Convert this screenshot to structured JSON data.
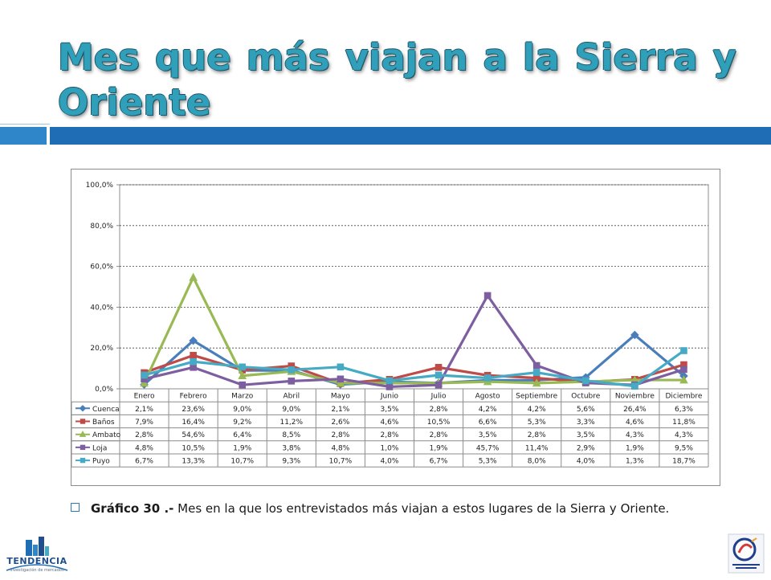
{
  "page": {
    "title": "Mes que más viajan a la Sierra y Oriente",
    "caption_label": "Gráfico 30 .-",
    "caption_text": " Mes en la que los entrevistados más viajan a estos lugares de la Sierra y Oriente.",
    "logo_left_text": "TENDENCIA",
    "logo_left_subtext": "investigación de mercados",
    "colors": {
      "title": "#2f9fba",
      "band_dark": "#1f6db4",
      "band_light": "#2f86c8"
    }
  },
  "chart_data": {
    "type": "line",
    "categories": [
      "Enero",
      "Febrero",
      "Marzo",
      "Abril",
      "Mayo",
      "Junio",
      "Julio",
      "Agosto",
      "Septiembre",
      "Octubre",
      "Noviembre",
      "Diciembre"
    ],
    "ylim": [
      0,
      100
    ],
    "yticks": [
      0,
      20,
      40,
      60,
      80,
      100
    ],
    "ytick_labels": [
      "0,0%",
      "20,0%",
      "40,0%",
      "60,0%",
      "80,0%",
      "100,0%"
    ],
    "grid": true,
    "legend": "data-table",
    "series": [
      {
        "name": "Cuenca",
        "color": "#4a7ebb",
        "marker": "diamond",
        "values": [
          2.1,
          23.6,
          9.0,
          9.0,
          2.1,
          3.5,
          2.8,
          4.2,
          4.2,
          5.6,
          26.4,
          6.3
        ],
        "labels": [
          "2,1%",
          "23,6%",
          "9,0%",
          "9,0%",
          "2,1%",
          "3,5%",
          "2,8%",
          "4,2%",
          "4,2%",
          "5,6%",
          "26,4%",
          "6,3%"
        ]
      },
      {
        "name": "Baños",
        "color": "#be4b48",
        "marker": "square",
        "values": [
          7.9,
          16.4,
          9.2,
          11.2,
          2.6,
          4.6,
          10.5,
          6.6,
          5.3,
          3.3,
          4.6,
          11.8
        ],
        "labels": [
          "7,9%",
          "16,4%",
          "9,2%",
          "11,2%",
          "2,6%",
          "4,6%",
          "10,5%",
          "6,6%",
          "5,3%",
          "3,3%",
          "4,6%",
          "11,8%"
        ]
      },
      {
        "name": "Ambato",
        "color": "#98b954",
        "marker": "triangle",
        "values": [
          2.8,
          54.6,
          6.4,
          8.5,
          2.8,
          2.8,
          2.8,
          3.5,
          2.8,
          3.5,
          4.3,
          4.3
        ],
        "labels": [
          "2,8%",
          "54,6%",
          "6,4%",
          "8,5%",
          "2,8%",
          "2,8%",
          "2,8%",
          "3,5%",
          "2,8%",
          "3,5%",
          "4,3%",
          "4,3%"
        ]
      },
      {
        "name": "Loja",
        "color": "#7d5fa0",
        "marker": "x",
        "values": [
          4.8,
          10.5,
          1.9,
          3.8,
          4.8,
          1.0,
          1.9,
          45.7,
          11.4,
          2.9,
          1.9,
          9.5
        ],
        "labels": [
          "4,8%",
          "10,5%",
          "1,9%",
          "3,8%",
          "4,8%",
          "1,0%",
          "1,9%",
          "45,7%",
          "11,4%",
          "2,9%",
          "1,9%",
          "9,5%"
        ]
      },
      {
        "name": "Puyo",
        "color": "#46aac5",
        "marker": "square",
        "values": [
          6.7,
          13.3,
          10.7,
          9.3,
          10.7,
          4.0,
          6.7,
          5.3,
          8.0,
          4.0,
          1.3,
          18.7
        ],
        "labels": [
          "6,7%",
          "13,3%",
          "10,7%",
          "9,3%",
          "10,7%",
          "4,0%",
          "6,7%",
          "5,3%",
          "8,0%",
          "4,0%",
          "1,3%",
          "18,7%"
        ]
      }
    ]
  }
}
